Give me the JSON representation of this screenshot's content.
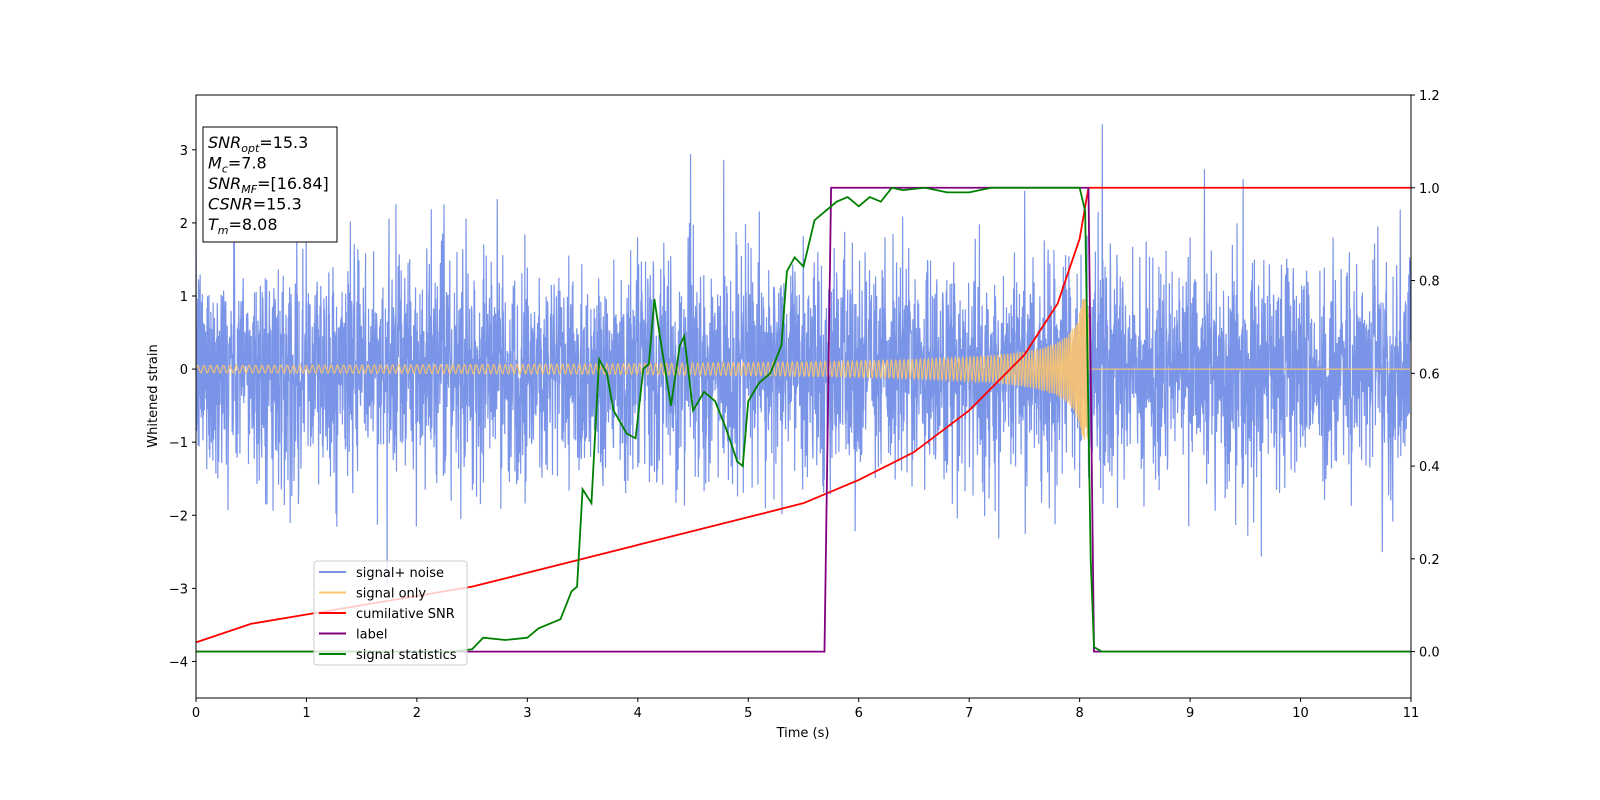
{
  "chart_data": {
    "type": "line",
    "xlabel": "Time (s)",
    "ylabel": "Whitened strain",
    "xlim": [
      0,
      11
    ],
    "ylim_left": [
      -4.5,
      3.75
    ],
    "ylim_right": [
      -0.1,
      1.2
    ],
    "x_ticks": [
      "0",
      "1",
      "2",
      "3",
      "4",
      "5",
      "6",
      "7",
      "8",
      "9",
      "10",
      "11"
    ],
    "y_left_ticks": [
      "−4",
      "−3",
      "−2",
      "−1",
      "0",
      "1",
      "2",
      "3"
    ],
    "y_left_tick_values": [
      -4,
      -3,
      -2,
      -1,
      0,
      1,
      2,
      3
    ],
    "y_right_ticks": [
      "0.0",
      "0.2",
      "0.4",
      "0.6",
      "0.8",
      "1.0",
      "1.2"
    ],
    "y_right_tick_values": [
      0.0,
      0.2,
      0.4,
      0.6,
      0.8,
      1.0,
      1.2
    ],
    "grid": false,
    "legend_position": "lower-left",
    "info_box": {
      "lines": [
        {
          "main": "SNR",
          "sub": "opt",
          "rest": "=15.3"
        },
        {
          "main": "M",
          "sub": "c",
          "rest": "=7.8"
        },
        {
          "main": "SNR",
          "sub": "MF",
          "rest": "=[16.84]"
        },
        {
          "main": "CSNR",
          "sub": "",
          "rest": "=15.3"
        },
        {
          "main": "T",
          "sub": "m",
          "rest": "=8.08"
        }
      ]
    },
    "series": [
      {
        "name": "signal+ noise",
        "axis": "left",
        "color": "#7a94e8",
        "description": "whitened noise plus signal, roughly ±1.5 with spikes up to ±3.4",
        "noise_sigma": 0.75,
        "x_range": [
          0,
          11
        ]
      },
      {
        "name": "signal only",
        "axis": "left",
        "color": "#fbc46e",
        "description": "chirp growing in amplitude and frequency until merger",
        "t_merger": 8.08,
        "amplitude_start": 0.05,
        "amplitude_peak": 1.0
      },
      {
        "name": "cumilative SNR",
        "axis": "right",
        "color": "#ff0000",
        "x": [
          0,
          0.5,
          1,
          1.5,
          2,
          2.5,
          3,
          3.5,
          4,
          4.5,
          5,
          5.5,
          6,
          6.5,
          7,
          7.5,
          7.8,
          8.0,
          8.08,
          8.1,
          11
        ],
        "y": [
          0.02,
          0.06,
          0.08,
          0.1,
          0.12,
          0.14,
          0.17,
          0.2,
          0.23,
          0.26,
          0.29,
          0.32,
          0.37,
          0.43,
          0.52,
          0.64,
          0.75,
          0.89,
          1.0,
          1.0,
          1.0
        ]
      },
      {
        "name": "label",
        "axis": "right",
        "color": "#800080",
        "x": [
          0,
          5.69,
          5.75,
          8.08,
          8.13,
          11
        ],
        "y": [
          0,
          0,
          1,
          1,
          0,
          0
        ]
      },
      {
        "name": "signal statistics",
        "axis": "right",
        "color": "#008000",
        "x": [
          0,
          2.3,
          2.5,
          2.6,
          2.8,
          3.0,
          3.1,
          3.3,
          3.4,
          3.45,
          3.5,
          3.58,
          3.65,
          3.72,
          3.78,
          3.9,
          3.98,
          4.05,
          4.1,
          4.15,
          4.2,
          4.3,
          4.38,
          4.42,
          4.5,
          4.6,
          4.7,
          4.8,
          4.9,
          4.95,
          5.0,
          5.1,
          5.2,
          5.3,
          5.35,
          5.42,
          5.5,
          5.6,
          5.7,
          5.8,
          5.9,
          6.0,
          6.1,
          6.2,
          6.3,
          6.4,
          6.6,
          6.8,
          7.0,
          7.2,
          7.4,
          7.6,
          7.8,
          8.0,
          8.05,
          8.1,
          8.13,
          8.2,
          11
        ],
        "y": [
          0.0,
          0.0,
          0.005,
          0.03,
          0.025,
          0.03,
          0.05,
          0.07,
          0.13,
          0.14,
          0.35,
          0.32,
          0.63,
          0.6,
          0.52,
          0.47,
          0.46,
          0.61,
          0.62,
          0.76,
          0.68,
          0.53,
          0.66,
          0.68,
          0.52,
          0.56,
          0.54,
          0.48,
          0.41,
          0.4,
          0.54,
          0.58,
          0.6,
          0.66,
          0.82,
          0.85,
          0.83,
          0.93,
          0.95,
          0.97,
          0.98,
          0.96,
          0.98,
          0.97,
          1.0,
          0.995,
          1.0,
          0.99,
          0.99,
          1.0,
          1.0,
          1.0,
          1.0,
          1.0,
          0.95,
          0.2,
          0.01,
          0.0,
          0.0
        ]
      }
    ]
  }
}
